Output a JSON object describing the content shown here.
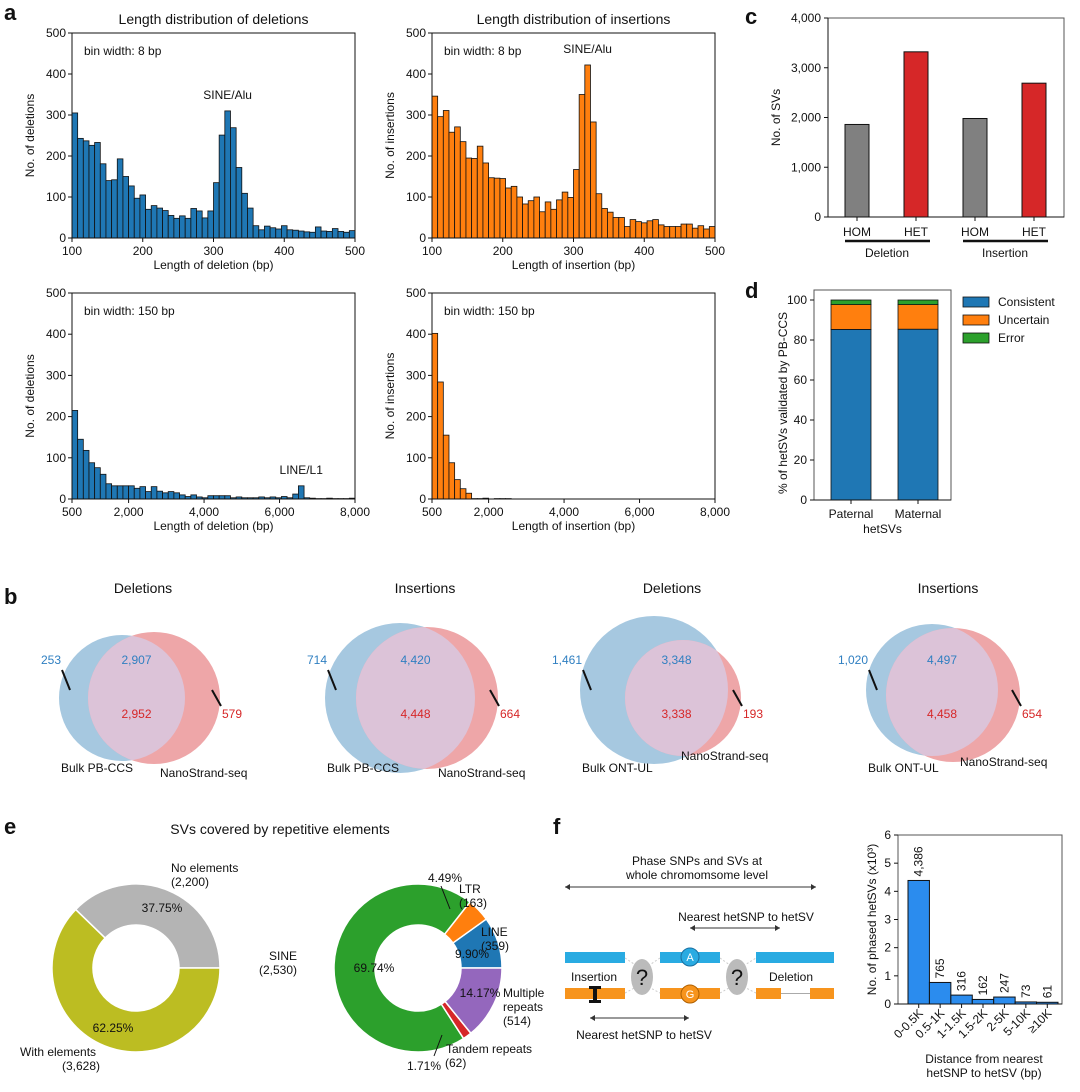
{
  "panel_labels": {
    "a": "a",
    "b": "b",
    "c": "c",
    "d": "d",
    "e": "e",
    "f": "f"
  },
  "colors": {
    "deletion": "#1f77b4",
    "insertion": "#ff7f0e",
    "hom": "#808080",
    "het": "#d62728",
    "consistent": "#1f77b4",
    "uncertain": "#ff7f0e",
    "error": "#2ca02c",
    "venn_blue": "#a6c8e0",
    "venn_red": "#eea6a8",
    "venn_overlap": "#dcc3d8",
    "venn_text_blue": "#2f7fc1",
    "venn_text_red": "#d62728",
    "phase_bar": "#2b8cee",
    "no_elements": "#b4b4b4",
    "with_elements": "#bcbd22",
    "sine": "#2ca02c",
    "ltr": "#ff7f0e",
    "line": "#1f77b4",
    "multiple": "#9467bd",
    "tandem": "#d62728",
    "diagram_blue": "#29abe2",
    "diagram_orange": "#f7941d",
    "diagram_grey": "#bbbbbb"
  },
  "chart_data": [
    {
      "id": "a1",
      "type": "bar",
      "title": "Length distribution of deletions",
      "annotation": "bin width: 8 bp",
      "peak_label": "SINE/Alu",
      "xlabel": "Length of deletion (bp)",
      "ylabel": "No. of deletions",
      "xlim": [
        100,
        500
      ],
      "ylim": [
        0,
        500
      ],
      "xticks": [
        "100",
        "200",
        "300",
        "400",
        "500"
      ],
      "yticks": [
        "0",
        "100",
        "200",
        "300",
        "400",
        "500"
      ],
      "bin_width": 8,
      "values": [
        305,
        243,
        237,
        226,
        233,
        181,
        140,
        142,
        193,
        150,
        127,
        97,
        105,
        70,
        79,
        73,
        67,
        55,
        48,
        54,
        48,
        72,
        66,
        49,
        66,
        135,
        251,
        310,
        269,
        172,
        109,
        73,
        30,
        20,
        29,
        25,
        22,
        30,
        20,
        19,
        17,
        15,
        14,
        27,
        17,
        16,
        23,
        16,
        14,
        18
      ]
    },
    {
      "id": "a2",
      "type": "bar",
      "title": "Length distribution of insertions",
      "annotation": "bin width: 8 bp",
      "peak_label": "SINE/Alu",
      "xlabel": "Length of insertion (bp)",
      "ylabel": "No. of insertions",
      "xlim": [
        100,
        500
      ],
      "ylim": [
        0,
        500
      ],
      "xticks": [
        "100",
        "200",
        "300",
        "400",
        "500"
      ],
      "yticks": [
        "0",
        "100",
        "200",
        "300",
        "400",
        "500"
      ],
      "bin_width": 8,
      "values": [
        346,
        296,
        311,
        258,
        271,
        235,
        195,
        194,
        224,
        183,
        147,
        146,
        145,
        122,
        126,
        100,
        83,
        91,
        100,
        64,
        88,
        70,
        93,
        112,
        99,
        167,
        350,
        422,
        283,
        108,
        72,
        63,
        50,
        50,
        28,
        45,
        40,
        37,
        42,
        45,
        32,
        28,
        28,
        28,
        34,
        34,
        24,
        30,
        22,
        28
      ]
    },
    {
      "id": "a3",
      "type": "bar",
      "title": "",
      "annotation": "bin width: 150 bp",
      "peak_label": "LINE/L1",
      "xlabel": "Length of deletion (bp)",
      "ylabel": "No. of deletions",
      "xlim": [
        500,
        8000
      ],
      "ylim": [
        0,
        500
      ],
      "xticks": [
        "500",
        "2,000",
        "4,000",
        "6,000",
        "8,000"
      ],
      "xtick_values": [
        500,
        2000,
        4000,
        6000,
        8000
      ],
      "yticks": [
        "0",
        "100",
        "200",
        "300",
        "400",
        "500"
      ],
      "bin_width": 150,
      "values": [
        215,
        145,
        118,
        88,
        76,
        60,
        37,
        32,
        32,
        32,
        32,
        26,
        30,
        18,
        30,
        19,
        15,
        18,
        15,
        10,
        6,
        10,
        5,
        3,
        8,
        8,
        8,
        8,
        3,
        5,
        3,
        3,
        3,
        5,
        3,
        5,
        3,
        6,
        3,
        12,
        32,
        3,
        2,
        1,
        1,
        2,
        1,
        1,
        1,
        2
      ]
    },
    {
      "id": "a4",
      "type": "bar",
      "title": "",
      "annotation": "bin width: 150 bp",
      "peak_label": "",
      "xlabel": "Length of insertion (bp)",
      "ylabel": "No. of insertions",
      "xlim": [
        500,
        8000
      ],
      "ylim": [
        0,
        500
      ],
      "xticks": [
        "500",
        "2,000",
        "4,000",
        "6,000",
        "8,000"
      ],
      "xtick_values": [
        500,
        2000,
        4000,
        6000,
        8000
      ],
      "yticks": [
        "0",
        "100",
        "200",
        "300",
        "400",
        "500"
      ],
      "bin_width": 150,
      "values": [
        402,
        284,
        155,
        88,
        47,
        25,
        14,
        1,
        1,
        2,
        0,
        1,
        1,
        1
      ]
    },
    {
      "id": "b",
      "type": "venn",
      "diagrams": [
        {
          "title": "Deletions",
          "left_label": "Bulk PB-CCS",
          "right_label": "NanoStrand-seq",
          "left_only": "253",
          "overlap_left": "2,907",
          "overlap_right": "2,952",
          "right_only": "579"
        },
        {
          "title": "Insertions",
          "left_label": "Bulk PB-CCS",
          "right_label": "NanoStrand-seq",
          "left_only": "714",
          "overlap_left": "4,420",
          "overlap_right": "4,448",
          "right_only": "664"
        },
        {
          "title": "Deletions",
          "left_label": "Bulk ONT-UL",
          "right_label": "NanoStrand-seq",
          "left_only": "1,461",
          "overlap_left": "3,348",
          "overlap_right": "3,338",
          "right_only": "193"
        },
        {
          "title": "Insertions",
          "left_label": "Bulk ONT-UL",
          "right_label": "NanoStrand-seq",
          "left_only": "1,020",
          "overlap_left": "4,497",
          "overlap_right": "4,458",
          "right_only": "654"
        }
      ]
    },
    {
      "id": "c",
      "type": "bar",
      "ylabel": "No. of SVs",
      "ylim": [
        0,
        4000
      ],
      "yticks": [
        "0",
        "1,000",
        "2,000",
        "3,000",
        "4,000"
      ],
      "categories": [
        "HOM",
        "HET",
        "HOM",
        "HET"
      ],
      "groups": [
        "Deletion",
        "Insertion"
      ],
      "values": [
        1860,
        3320,
        1980,
        2690
      ]
    },
    {
      "id": "d",
      "type": "bar",
      "stacked": true,
      "ylabel": "% of hetSVs validated by PB-CCS",
      "xlabel": "hetSVs",
      "ylim": [
        0,
        100
      ],
      "yticks": [
        "0",
        "20",
        "40",
        "60",
        "80",
        "100"
      ],
      "categories": [
        "Paternal",
        "Maternal"
      ],
      "legend_position": "right",
      "series": [
        {
          "name": "Consistent",
          "values": [
            85.3,
            85.4
          ]
        },
        {
          "name": "Uncertain",
          "values": [
            12.4,
            12.3
          ]
        },
        {
          "name": "Error",
          "values": [
            2.3,
            2.3
          ]
        }
      ]
    },
    {
      "id": "e1",
      "type": "pie",
      "donut": true,
      "title": "SVs covered by repetitive elements",
      "slices": [
        {
          "name": "No elements",
          "count": "(2,200)",
          "value": 37.75,
          "pct": "37.75%"
        },
        {
          "name": "With elements",
          "count": "(3,628)",
          "value": 62.25,
          "pct": "62.25%"
        }
      ]
    },
    {
      "id": "e2",
      "type": "pie",
      "donut": true,
      "slices": [
        {
          "name": "LINE",
          "count": "(359)",
          "value": 9.9,
          "pct": "9.90%"
        },
        {
          "name": "LTR",
          "count": "(163)",
          "value": 4.49,
          "pct": "4.49%"
        },
        {
          "name": "SINE",
          "count": "(2,530)",
          "value": 69.74,
          "pct": "69.74%"
        },
        {
          "name": "Tandem repeats",
          "count": "(62)",
          "value": 1.71,
          "pct": "1.71%"
        },
        {
          "name": "Multiple repeats",
          "count": "(514)",
          "value": 14.17,
          "pct": "14.17%"
        }
      ]
    },
    {
      "id": "f",
      "type": "bar",
      "ylabel": "No. of phased hetSVs (x10³)",
      "xlabel_line1": "Distance from nearest",
      "xlabel_line2": "hetSNP to hetSV (bp)",
      "ylim": [
        0,
        6
      ],
      "yticks": [
        "0",
        "1",
        "2",
        "3",
        "4",
        "5",
        "6"
      ],
      "categories": [
        "0-0.5K",
        "0.5-1K",
        "1-1.5K",
        "1.5-2K",
        "2-5K",
        "5-10K",
        "≥10K"
      ],
      "values": [
        4386,
        765,
        316,
        162,
        247,
        73,
        61
      ],
      "labels": [
        "4,386",
        "765",
        "316",
        "162",
        "247",
        "73",
        "61"
      ]
    }
  ],
  "diagram_f": {
    "top_text_1": "Phase SNPs and SVs at",
    "top_text_2": "whole chromomsome level",
    "mid_text": "Nearest hetSNP to hetSV",
    "bottom_text": "Nearest hetSNP to hetSV",
    "insertion": "Insertion",
    "deletion": "Deletion",
    "allele_top": "A",
    "allele_bottom": "G",
    "unknown": "?"
  }
}
